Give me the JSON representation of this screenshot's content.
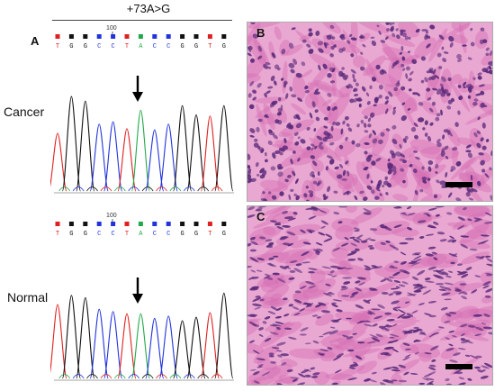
{
  "title": "+73A>G",
  "panels": {
    "a": "A",
    "b": "B",
    "c": "C"
  },
  "labels": {
    "cancer": "Cancer",
    "normal": "Normal"
  },
  "position_label": "100",
  "sequence": [
    "T",
    "G",
    "G",
    "C",
    "C",
    "T",
    "A",
    "C",
    "C",
    "G",
    "G",
    "T",
    "G"
  ],
  "base_colors": {
    "A": "#22a84a",
    "C": "#2233dd",
    "G": "#111111",
    "T": "#e02020"
  },
  "tissue_colors": {
    "background": "#e9a8d2",
    "stroma": "#d46fb3",
    "nuclei": "#5a2a7a"
  }
}
